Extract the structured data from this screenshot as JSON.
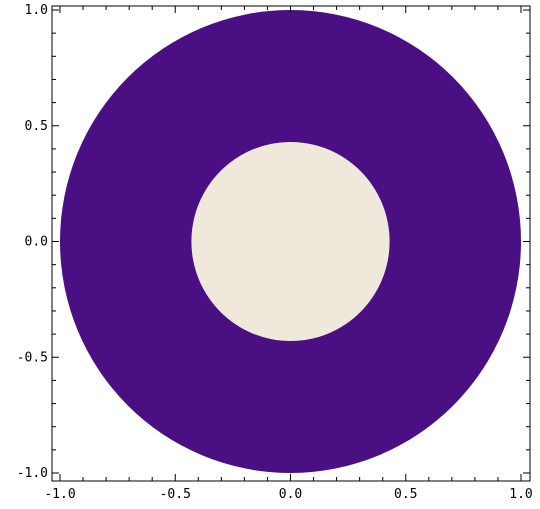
{
  "chart_data": {
    "type": "region",
    "title": "",
    "xlabel": "",
    "ylabel": "",
    "xlim": [
      -1.0,
      1.0
    ],
    "ylim": [
      -1.0,
      1.0
    ],
    "grid": false,
    "regions": [
      {
        "shape": "circle",
        "center": [
          0.0,
          0.0
        ],
        "radius": 1.0,
        "fill": "#4B0F84"
      },
      {
        "shape": "circle",
        "center": [
          0.0,
          0.0
        ],
        "radius": 0.43,
        "fill": "#F0E8DA"
      }
    ],
    "x_ticks": [
      {
        "value": -1.0,
        "label": "-1.0"
      },
      {
        "value": -0.5,
        "label": "-0.5"
      },
      {
        "value": 0.0,
        "label": "0.0"
      },
      {
        "value": 0.5,
        "label": "0.5"
      },
      {
        "value": 1.0,
        "label": "1.0"
      }
    ],
    "y_ticks": [
      {
        "value": 1.0,
        "label": "1.0"
      },
      {
        "value": 0.5,
        "label": "0.5"
      },
      {
        "value": 0.0,
        "label": "0.0"
      },
      {
        "value": -0.5,
        "label": "-0.5"
      },
      {
        "value": -1.0,
        "label": "-1.0"
      }
    ],
    "colors": {
      "frame": "#000000",
      "background": "#FFFFFF"
    }
  }
}
